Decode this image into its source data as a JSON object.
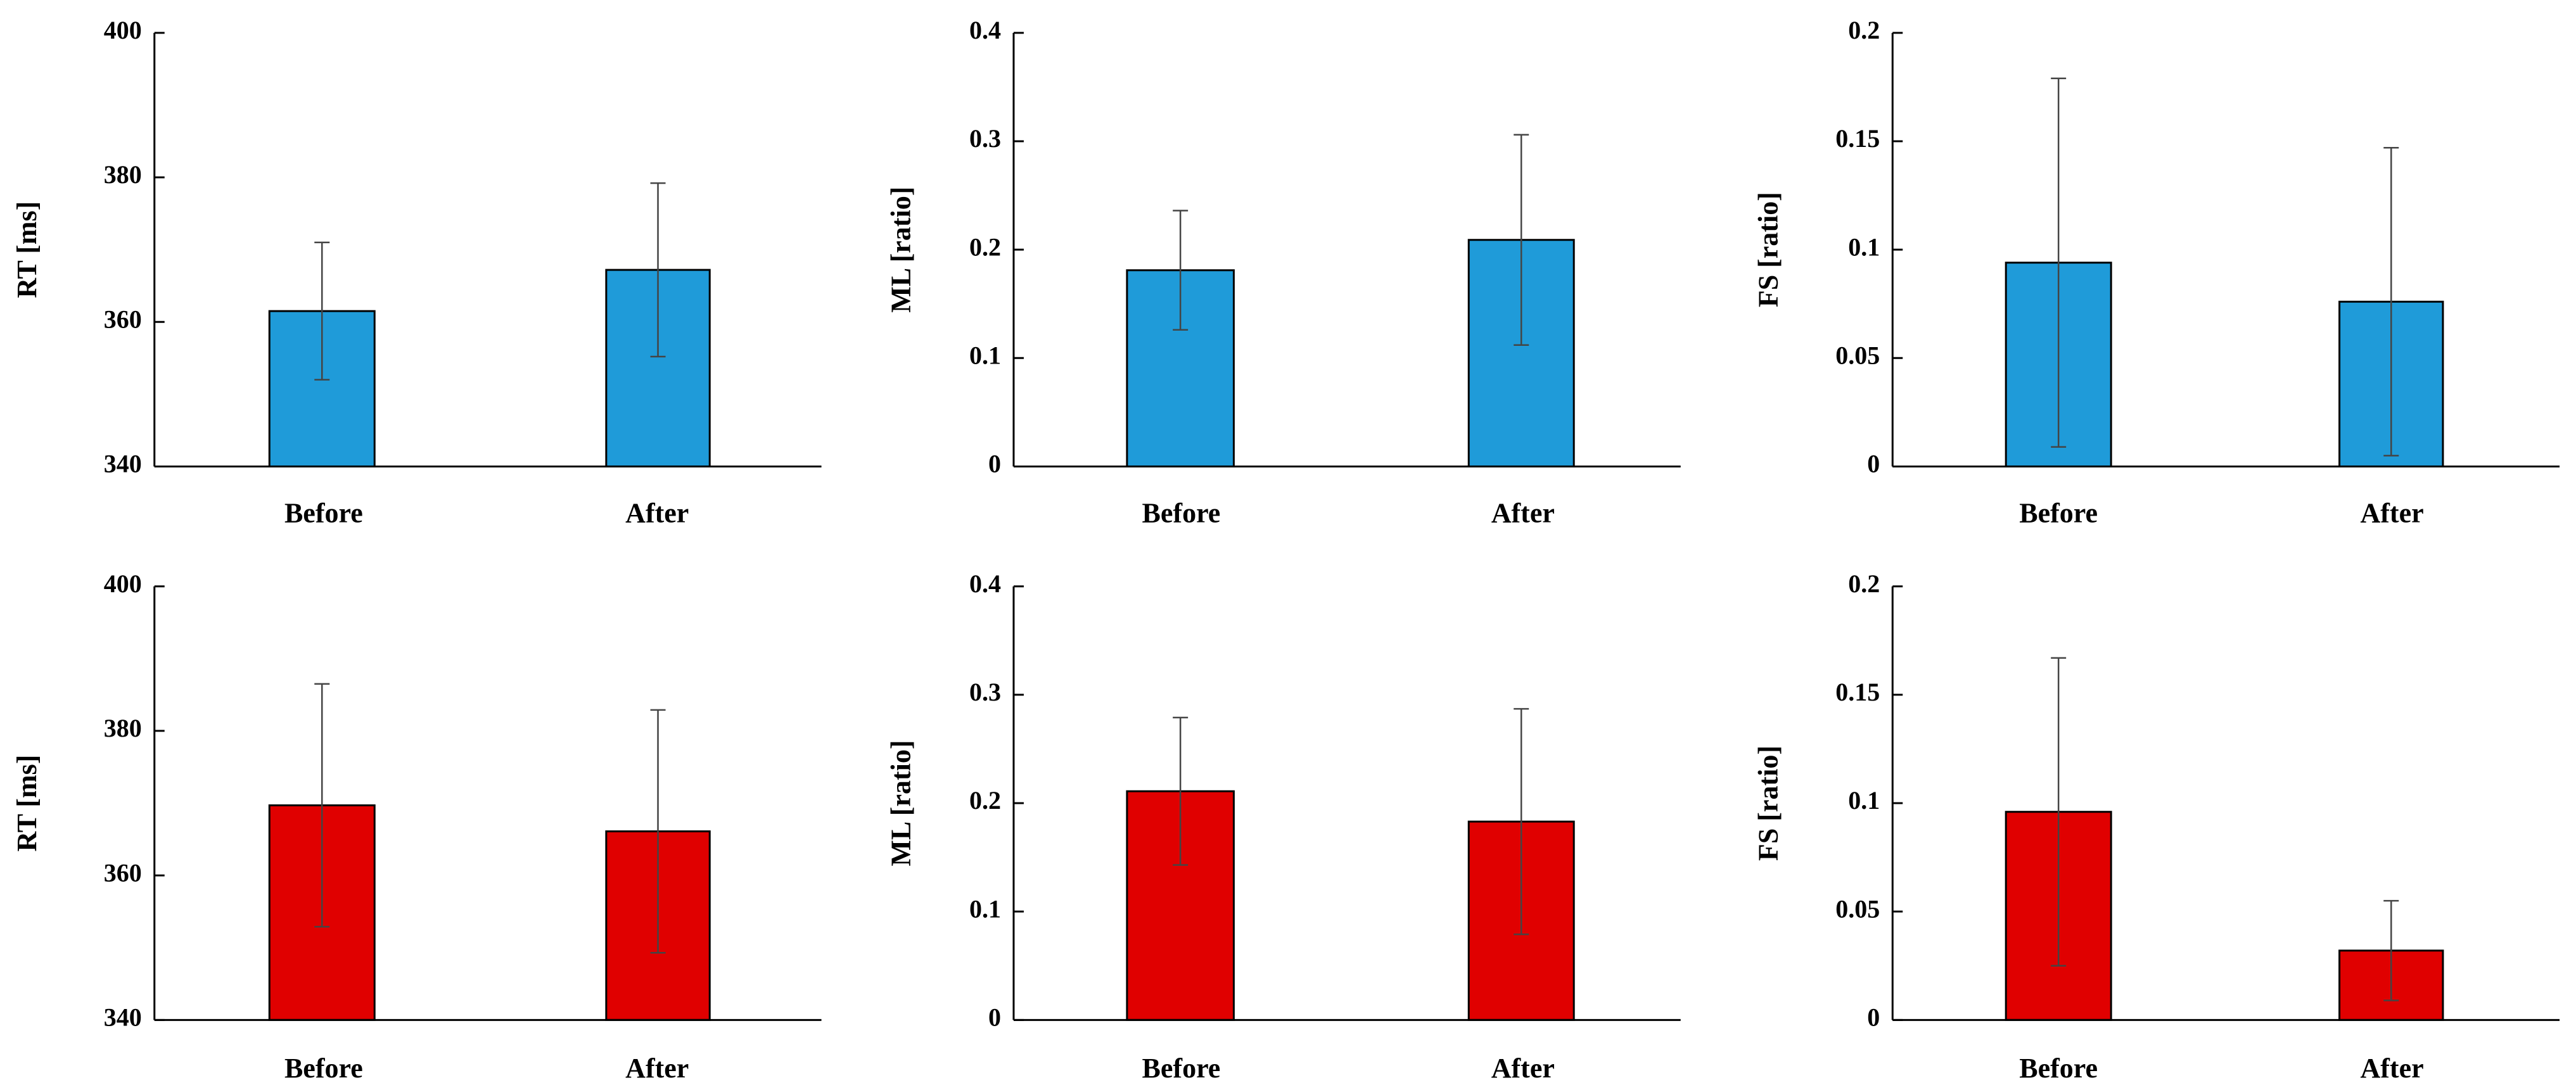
{
  "chart_data": [
    {
      "type": "bar",
      "group": "blue",
      "color": "#1f9bd9",
      "categories": [
        "Before",
        "After"
      ],
      "values": [
        361.5,
        367.2
      ],
      "errors": [
        9.5,
        12
      ],
      "ylabel": "RT [ms]",
      "ylim": [
        340,
        400
      ],
      "yticks": [
        340,
        360,
        380,
        400
      ],
      "ytick_labels": [
        "340",
        "360",
        "380",
        "400"
      ],
      "grid": false
    },
    {
      "type": "bar",
      "group": "blue",
      "color": "#1f9bd9",
      "categories": [
        "Before",
        "After"
      ],
      "values": [
        0.181,
        0.209
      ],
      "errors": [
        0.055,
        0.097
      ],
      "ylabel": "ML [ratio]",
      "ylim": [
        0,
        0.4
      ],
      "yticks": [
        0,
        0.1,
        0.2,
        0.3,
        0.4
      ],
      "ytick_labels": [
        "0",
        "0.1",
        "0.2",
        "0.3",
        "0.4"
      ],
      "grid": false
    },
    {
      "type": "bar",
      "group": "blue",
      "color": "#1f9bd9",
      "categories": [
        "Before",
        "After"
      ],
      "values": [
        0.094,
        0.076
      ],
      "errors": [
        0.085,
        0.071
      ],
      "ylabel": "FS [ratio]",
      "ylim": [
        0,
        0.2
      ],
      "yticks": [
        0,
        0.05,
        0.1,
        0.15,
        0.2
      ],
      "ytick_labels": [
        "0",
        "0.05",
        "0.1",
        "0.15",
        "0.2"
      ],
      "grid": false
    },
    {
      "type": "bar",
      "group": "red",
      "color": "#e00000",
      "categories": [
        "Before",
        "After"
      ],
      "values": [
        369.7,
        366.1
      ],
      "errors": [
        16.8,
        16.8
      ],
      "ylabel": "RT [ms]",
      "ylim": [
        340,
        400
      ],
      "yticks": [
        340,
        360,
        380,
        400
      ],
      "ytick_labels": [
        "340",
        "360",
        "380",
        "400"
      ],
      "grid": false
    },
    {
      "type": "bar",
      "group": "red",
      "color": "#e00000",
      "categories": [
        "Before",
        "After"
      ],
      "values": [
        0.211,
        0.183
      ],
      "errors": [
        0.068,
        0.104
      ],
      "ylabel": "ML [ratio]",
      "ylim": [
        0,
        0.4
      ],
      "yticks": [
        0,
        0.1,
        0.2,
        0.3,
        0.4
      ],
      "ytick_labels": [
        "0",
        "0.1",
        "0.2",
        "0.3",
        "0.4"
      ],
      "grid": false
    },
    {
      "type": "bar",
      "group": "red",
      "color": "#e00000",
      "categories": [
        "Before",
        "After"
      ],
      "values": [
        0.096,
        0.032
      ],
      "errors": [
        0.071,
        0.023
      ],
      "ylabel": "FS [ratio]",
      "ylim": [
        0,
        0.2
      ],
      "yticks": [
        0,
        0.05,
        0.1,
        0.15,
        0.2
      ],
      "ytick_labels": [
        "0",
        "0.05",
        "0.1",
        "0.15",
        "0.2"
      ],
      "grid": false
    }
  ]
}
